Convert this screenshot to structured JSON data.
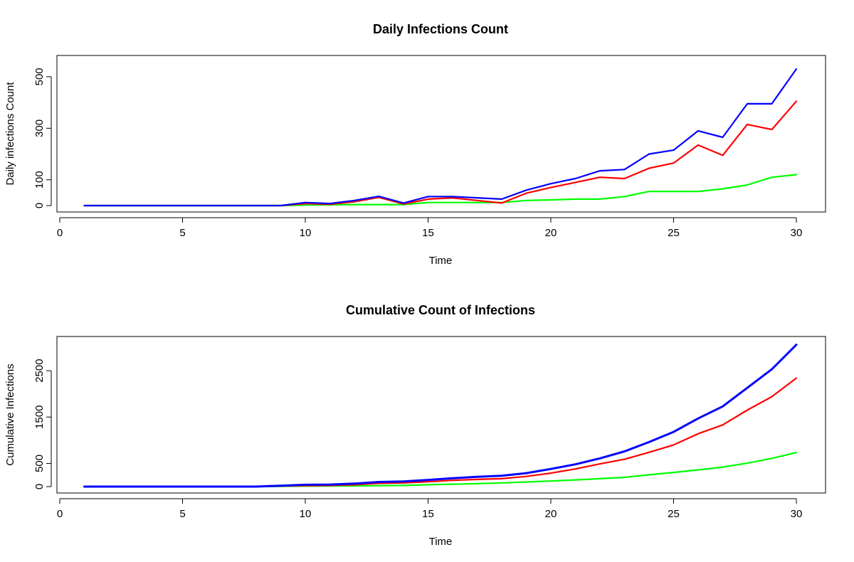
{
  "chart_data": [
    {
      "type": "line",
      "title": "Daily Infections Count",
      "xlabel": "Time",
      "ylabel": "Daily infections Count",
      "xlim": [
        0,
        30
      ],
      "ylim": [
        0,
        530
      ],
      "x_ticks": [
        0,
        5,
        10,
        15,
        20,
        25,
        30
      ],
      "y_ticks": [
        0,
        100,
        300,
        500
      ],
      "grid": false,
      "legend": "none",
      "x": [
        1,
        2,
        3,
        4,
        5,
        6,
        7,
        8,
        9,
        10,
        11,
        12,
        13,
        14,
        15,
        16,
        17,
        18,
        19,
        20,
        21,
        22,
        23,
        24,
        25,
        26,
        27,
        28,
        29,
        30
      ],
      "series": [
        {
          "color": "#0000ff",
          "values": [
            0,
            0,
            0,
            0,
            0,
            0,
            0,
            0,
            0,
            12,
            8,
            20,
            36,
            10,
            35,
            35,
            30,
            25,
            60,
            85,
            105,
            135,
            140,
            200,
            215,
            290,
            265,
            395,
            395,
            530
          ]
        },
        {
          "color": "#ff0000",
          "values": [
            0,
            0,
            0,
            0,
            0,
            0,
            0,
            0,
            0,
            8,
            5,
            15,
            32,
            6,
            25,
            30,
            20,
            10,
            48,
            70,
            90,
            110,
            105,
            145,
            165,
            235,
            195,
            315,
            295,
            405
          ]
        },
        {
          "color": "#00ff00",
          "values": [
            0,
            0,
            0,
            0,
            0,
            0,
            0,
            0,
            0,
            2,
            3,
            4,
            4,
            4,
            12,
            12,
            12,
            12,
            20,
            22,
            25,
            25,
            35,
            55,
            55,
            55,
            65,
            80,
            110,
            120
          ]
        }
      ]
    },
    {
      "type": "line",
      "title": "Cumulative Count of Infections",
      "xlabel": "Time",
      "ylabel": "Cumulative Infections",
      "xlim": [
        0,
        30
      ],
      "ylim": [
        0,
        3100
      ],
      "x_ticks": [
        0,
        5,
        10,
        15,
        20,
        25,
        30
      ],
      "y_ticks": [
        0,
        500,
        1500,
        2500
      ],
      "grid": false,
      "legend": "none",
      "x": [
        1,
        2,
        3,
        4,
        5,
        6,
        7,
        8,
        9,
        10,
        11,
        12,
        13,
        14,
        15,
        16,
        17,
        18,
        19,
        20,
        21,
        22,
        23,
        24,
        25,
        26,
        27,
        28,
        29,
        30
      ],
      "series": [
        {
          "color": "#0000ff",
          "values": [
            0,
            0,
            0,
            0,
            0,
            0,
            0,
            0,
            20,
            40,
            45,
            65,
            100,
            110,
            145,
            180,
            210,
            235,
            290,
            380,
            480,
            610,
            760,
            960,
            1180,
            1470,
            1730,
            2130,
            2530,
            3060
          ]
        },
        {
          "color": "#ff0000",
          "values": [
            0,
            0,
            0,
            0,
            0,
            0,
            0,
            0,
            10,
            20,
            25,
            40,
            70,
            80,
            105,
            135,
            155,
            170,
            220,
            290,
            380,
            490,
            590,
            740,
            900,
            1140,
            1330,
            1650,
            1940,
            2340
          ]
        },
        {
          "color": "#00ff00",
          "values": [
            0,
            0,
            0,
            0,
            0,
            0,
            0,
            0,
            5,
            10,
            12,
            16,
            20,
            25,
            40,
            50,
            65,
            80,
            100,
            120,
            145,
            170,
            200,
            255,
            305,
            360,
            420,
            505,
            610,
            735
          ]
        }
      ]
    }
  ]
}
